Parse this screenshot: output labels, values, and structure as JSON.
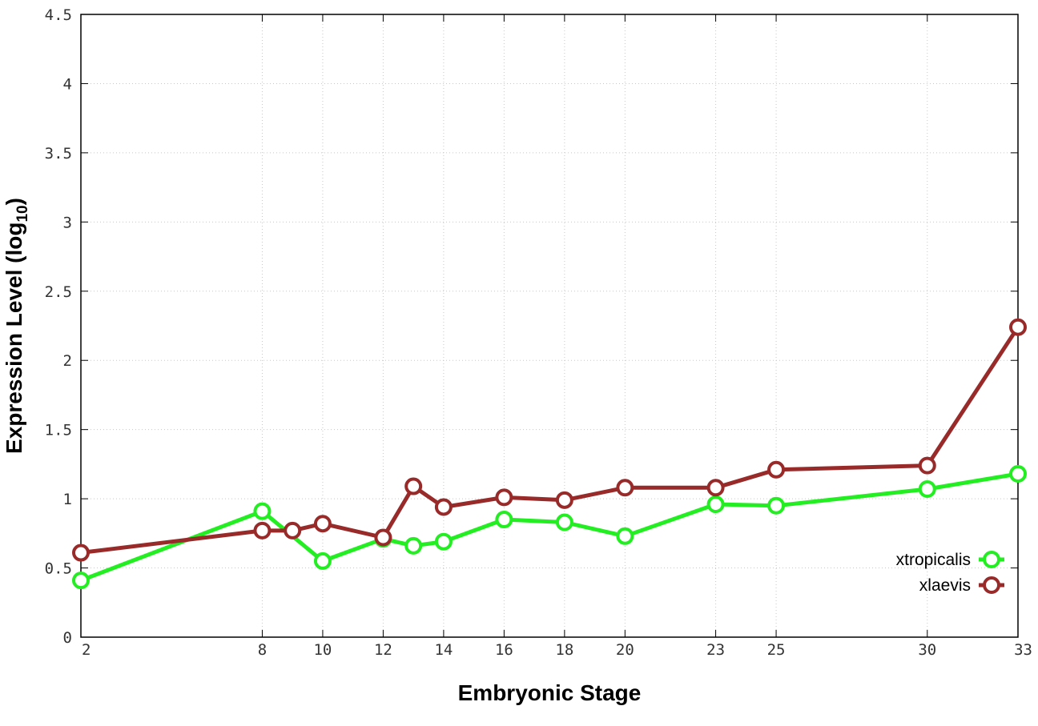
{
  "chart_data": {
    "type": "line",
    "xlabel": "Embryonic Stage",
    "ylabel_main": "Expression Level (log",
    "ylabel_sub": "10",
    "ylabel_close": ")",
    "xlim": [
      2,
      33
    ],
    "ylim": [
      0,
      4.5
    ],
    "x_ticks": [
      2,
      8,
      10,
      12,
      14,
      16,
      18,
      20,
      23,
      25,
      30,
      33
    ],
    "y_ticks": [
      {
        "value": 0,
        "label": "0"
      },
      {
        "value": 0.5,
        "label": "0.5"
      },
      {
        "value": 1,
        "label": "1"
      },
      {
        "value": 1.5,
        "label": "1.5"
      },
      {
        "value": 2,
        "label": "2"
      },
      {
        "value": 2.5,
        "label": "2.5"
      },
      {
        "value": 3,
        "label": "3"
      },
      {
        "value": 3.5,
        "label": "3.5"
      },
      {
        "value": 4,
        "label": "4"
      },
      {
        "value": 4.5,
        "label": "4.5"
      }
    ],
    "grid": true,
    "legend_position": "bottom-right",
    "series": [
      {
        "name": "xtropicalis",
        "color": "#22ee22",
        "x": [
          2,
          8,
          10,
          12,
          13,
          14,
          16,
          18,
          20,
          23,
          25,
          30,
          33
        ],
        "y": [
          0.41,
          0.91,
          0.55,
          0.71,
          0.66,
          0.69,
          0.85,
          0.83,
          0.73,
          0.96,
          0.95,
          1.07,
          1.18
        ]
      },
      {
        "name": "xlaevis",
        "color": "#992a2a",
        "x": [
          2,
          8,
          9,
          10,
          12,
          13,
          14,
          16,
          18,
          20,
          23,
          25,
          30,
          33
        ],
        "y": [
          0.61,
          0.77,
          0.77,
          0.82,
          0.72,
          1.09,
          0.94,
          1.01,
          0.99,
          1.08,
          1.08,
          1.21,
          1.24,
          2.24
        ]
      }
    ]
  }
}
